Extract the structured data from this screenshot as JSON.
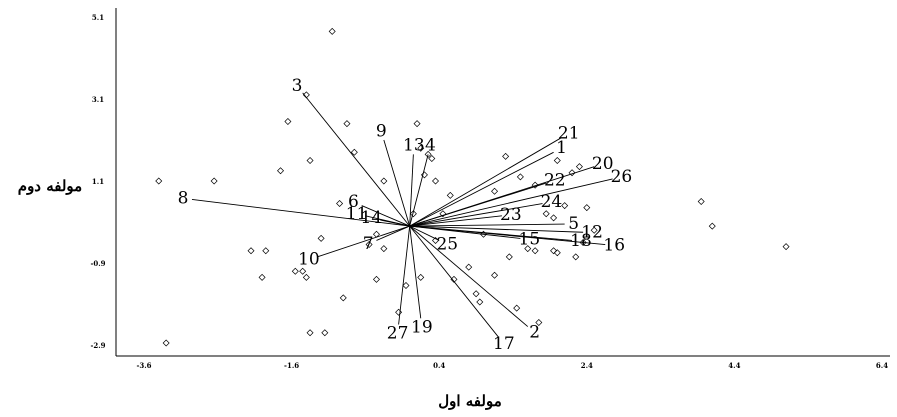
{
  "chart_data": {
    "type": "scatter",
    "subtype": "biplot",
    "xlabel": "مولفه اول",
    "ylabel": "مولفه دوم",
    "xlim": [
      -3.6,
      6.4
    ],
    "ylim": [
      -2.9,
      5.1
    ],
    "x_ticks": [
      "-3.6",
      "-1.6",
      "0.4",
      "2.4",
      "4.4",
      "6.4"
    ],
    "y_ticks": [
      "5.1",
      "3.1",
      "1.1",
      "-0.9",
      "-2.9"
    ],
    "grid": false,
    "points": [
      [
        -3.4,
        1.1
      ],
      [
        -3.3,
        -2.85
      ],
      [
        -2.65,
        1.1
      ],
      [
        -2.15,
        -0.6
      ],
      [
        -2.0,
        -1.25
      ],
      [
        -1.95,
        -0.6
      ],
      [
        -1.75,
        1.35
      ],
      [
        -1.55,
        -1.1
      ],
      [
        -1.45,
        -1.1
      ],
      [
        -1.4,
        -1.25
      ],
      [
        -1.35,
        1.6
      ],
      [
        -1.35,
        -2.6
      ],
      [
        -1.65,
        2.55
      ],
      [
        -1.4,
        3.2
      ],
      [
        -1.2,
        -0.3
      ],
      [
        -1.15,
        -2.6
      ],
      [
        -1.05,
        4.75
      ],
      [
        -0.95,
        0.55
      ],
      [
        -0.9,
        -1.75
      ],
      [
        -0.85,
        2.5
      ],
      [
        -0.75,
        1.8
      ],
      [
        -0.55,
        -0.45
      ],
      [
        -0.45,
        -0.2
      ],
      [
        -0.45,
        -1.3
      ],
      [
        -0.35,
        -0.55
      ],
      [
        -0.35,
        1.1
      ],
      [
        -0.15,
        -2.1
      ],
      [
        -0.05,
        -1.45
      ],
      [
        0.05,
        0.3
      ],
      [
        0.15,
        -1.25
      ],
      [
        0.1,
        2.5
      ],
      [
        0.15,
        1.9
      ],
      [
        0.2,
        1.25
      ],
      [
        0.25,
        1.75
      ],
      [
        0.3,
        1.65
      ],
      [
        0.35,
        -0.35
      ],
      [
        0.35,
        1.1
      ],
      [
        0.45,
        0.3
      ],
      [
        0.55,
        0.75
      ],
      [
        0.6,
        -1.3
      ],
      [
        0.8,
        -1.0
      ],
      [
        0.9,
        -1.65
      ],
      [
        0.95,
        -1.85
      ],
      [
        1.0,
        -0.2
      ],
      [
        1.15,
        0.85
      ],
      [
        1.15,
        -1.2
      ],
      [
        1.3,
        1.7
      ],
      [
        1.35,
        -0.75
      ],
      [
        1.45,
        -2.0
      ],
      [
        1.5,
        1.2
      ],
      [
        1.6,
        -0.55
      ],
      [
        1.7,
        -0.6
      ],
      [
        1.7,
        1.0
      ],
      [
        1.75,
        -2.35
      ],
      [
        1.85,
        0.3
      ],
      [
        1.95,
        0.2
      ],
      [
        1.95,
        -0.6
      ],
      [
        2.0,
        1.6
      ],
      [
        2.0,
        -0.65
      ],
      [
        2.1,
        0.5
      ],
      [
        2.2,
        1.3
      ],
      [
        2.25,
        -0.75
      ],
      [
        2.3,
        1.45
      ],
      [
        2.35,
        -0.4
      ],
      [
        2.4,
        0.45
      ],
      [
        2.5,
        -0.1
      ],
      [
        3.95,
        0.6
      ],
      [
        4.1,
        0.0
      ],
      [
        5.1,
        -0.5
      ]
    ],
    "vectors": [
      {
        "label": "1",
        "x": 1.95,
        "y": 1.8
      },
      {
        "label": "2",
        "x": 1.6,
        "y": -2.45
      },
      {
        "label": "3",
        "x": -1.45,
        "y": 3.25
      },
      {
        "label": "4",
        "x": 0.25,
        "y": 1.75
      },
      {
        "label": "5",
        "x": 2.1,
        "y": 0.05
      },
      {
        "label": "6",
        "x": -0.65,
        "y": 0.5
      },
      {
        "label": "7",
        "x": -0.45,
        "y": -0.35
      },
      {
        "label": "8",
        "x": -2.95,
        "y": 0.65
      },
      {
        "label": "9",
        "x": -0.35,
        "y": 2.1
      },
      {
        "label": "10",
        "x": -1.25,
        "y": -0.75
      },
      {
        "label": "11",
        "x": -0.6,
        "y": 0.25
      },
      {
        "label": "12",
        "x": 2.35,
        "y": -0.15
      },
      {
        "label": "13",
        "x": 0.05,
        "y": 1.75
      },
      {
        "label": "14",
        "x": -0.4,
        "y": 0.15
      },
      {
        "label": "15",
        "x": 1.5,
        "y": -0.3
      },
      {
        "label": "16",
        "x": 2.65,
        "y": -0.45
      },
      {
        "label": "17",
        "x": 1.2,
        "y": -2.7
      },
      {
        "label": "18",
        "x": 2.2,
        "y": -0.35
      },
      {
        "label": "19",
        "x": 0.15,
        "y": -2.25
      },
      {
        "label": "20",
        "x": 2.5,
        "y": 1.45
      },
      {
        "label": "21",
        "x": 2.05,
        "y": 2.15
      },
      {
        "label": "22",
        "x": 1.85,
        "y": 1.05
      },
      {
        "label": "23",
        "x": 1.25,
        "y": 0.25
      },
      {
        "label": "24",
        "x": 1.8,
        "y": 0.55
      },
      {
        "label": "25",
        "x": 0.4,
        "y": -0.35
      },
      {
        "label": "26",
        "x": 2.75,
        "y": 1.15
      },
      {
        "label": "27",
        "x": -0.15,
        "y": -2.4
      }
    ]
  }
}
